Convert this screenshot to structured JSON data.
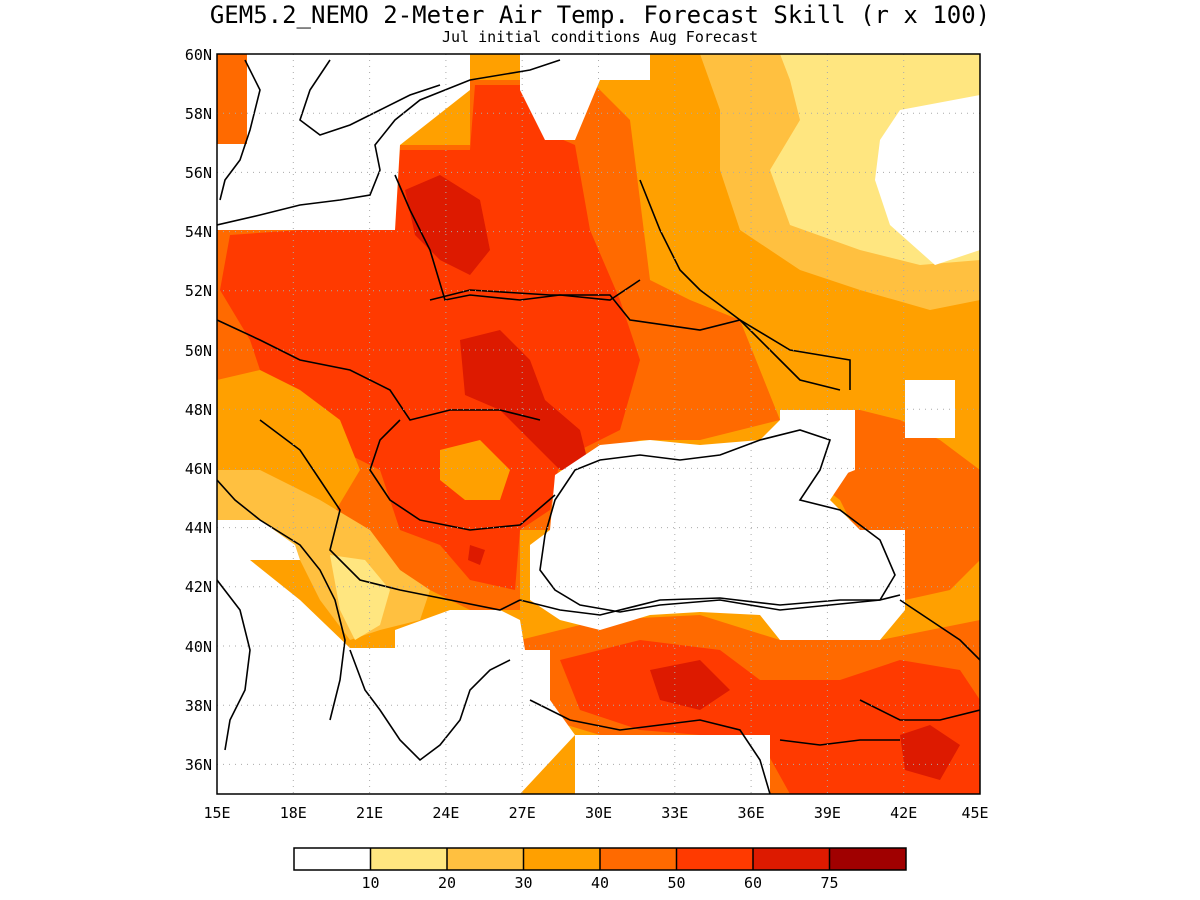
{
  "title": "GEM5.2_NEMO 2-Meter Air Temp. Forecast Skill (r x 100)",
  "subtitle": "Jul initial conditions  Aug Forecast",
  "map": {
    "lon_range": [
      15,
      45
    ],
    "lat_range": [
      35,
      60
    ],
    "lat_labels": [
      "60N",
      "58N",
      "56N",
      "54N",
      "52N",
      "50N",
      "48N",
      "46N",
      "44N",
      "42N",
      "40N",
      "38N",
      "36N"
    ],
    "lon_labels": [
      "15E",
      "18E",
      "21E",
      "24E",
      "27E",
      "30E",
      "33E",
      "36E",
      "39E",
      "42E",
      "45E"
    ],
    "gridlines": true
  },
  "colorbar": {
    "levels": [
      "10",
      "20",
      "30",
      "40",
      "50",
      "60",
      "75"
    ],
    "colors": [
      "#ffffff",
      "#ffe680",
      "#ffc040",
      "#ffa000",
      "#ff6a00",
      "#ff3a00",
      "#dd1a00",
      "#a00000"
    ]
  },
  "regions": [
    {
      "name": "skill-40-50-western-block",
      "color": "#ff6a00"
    },
    {
      "name": "skill-50-60-central-block",
      "color": "#ff3a00"
    },
    {
      "name": "skill-60-75-belarus-core",
      "color": "#dd1a00"
    },
    {
      "name": "skill-60-75-ukraine-moldova-core",
      "color": "#dd1a00"
    },
    {
      "name": "skill-30-40-russia-east",
      "color": "#ffa000"
    },
    {
      "name": "skill-20-30-russia-east",
      "color": "#ffc040"
    },
    {
      "name": "skill-10-20-russia-east",
      "color": "#ffe680"
    },
    {
      "name": "skill-below-10-russia-east",
      "color": "#ffffff"
    },
    {
      "name": "skill-40-50-caucasus",
      "color": "#ff6a00"
    },
    {
      "name": "skill-50-60-turkey",
      "color": "#ff3a00"
    },
    {
      "name": "skill-60-75-syria-iraq",
      "color": "#dd1a00"
    },
    {
      "name": "skill-20-30-balkans",
      "color": "#ffc040"
    },
    {
      "name": "skill-10-20-albania",
      "color": "#ffe680"
    },
    {
      "name": "masked-black-sea",
      "color": "#ffffff"
    }
  ]
}
